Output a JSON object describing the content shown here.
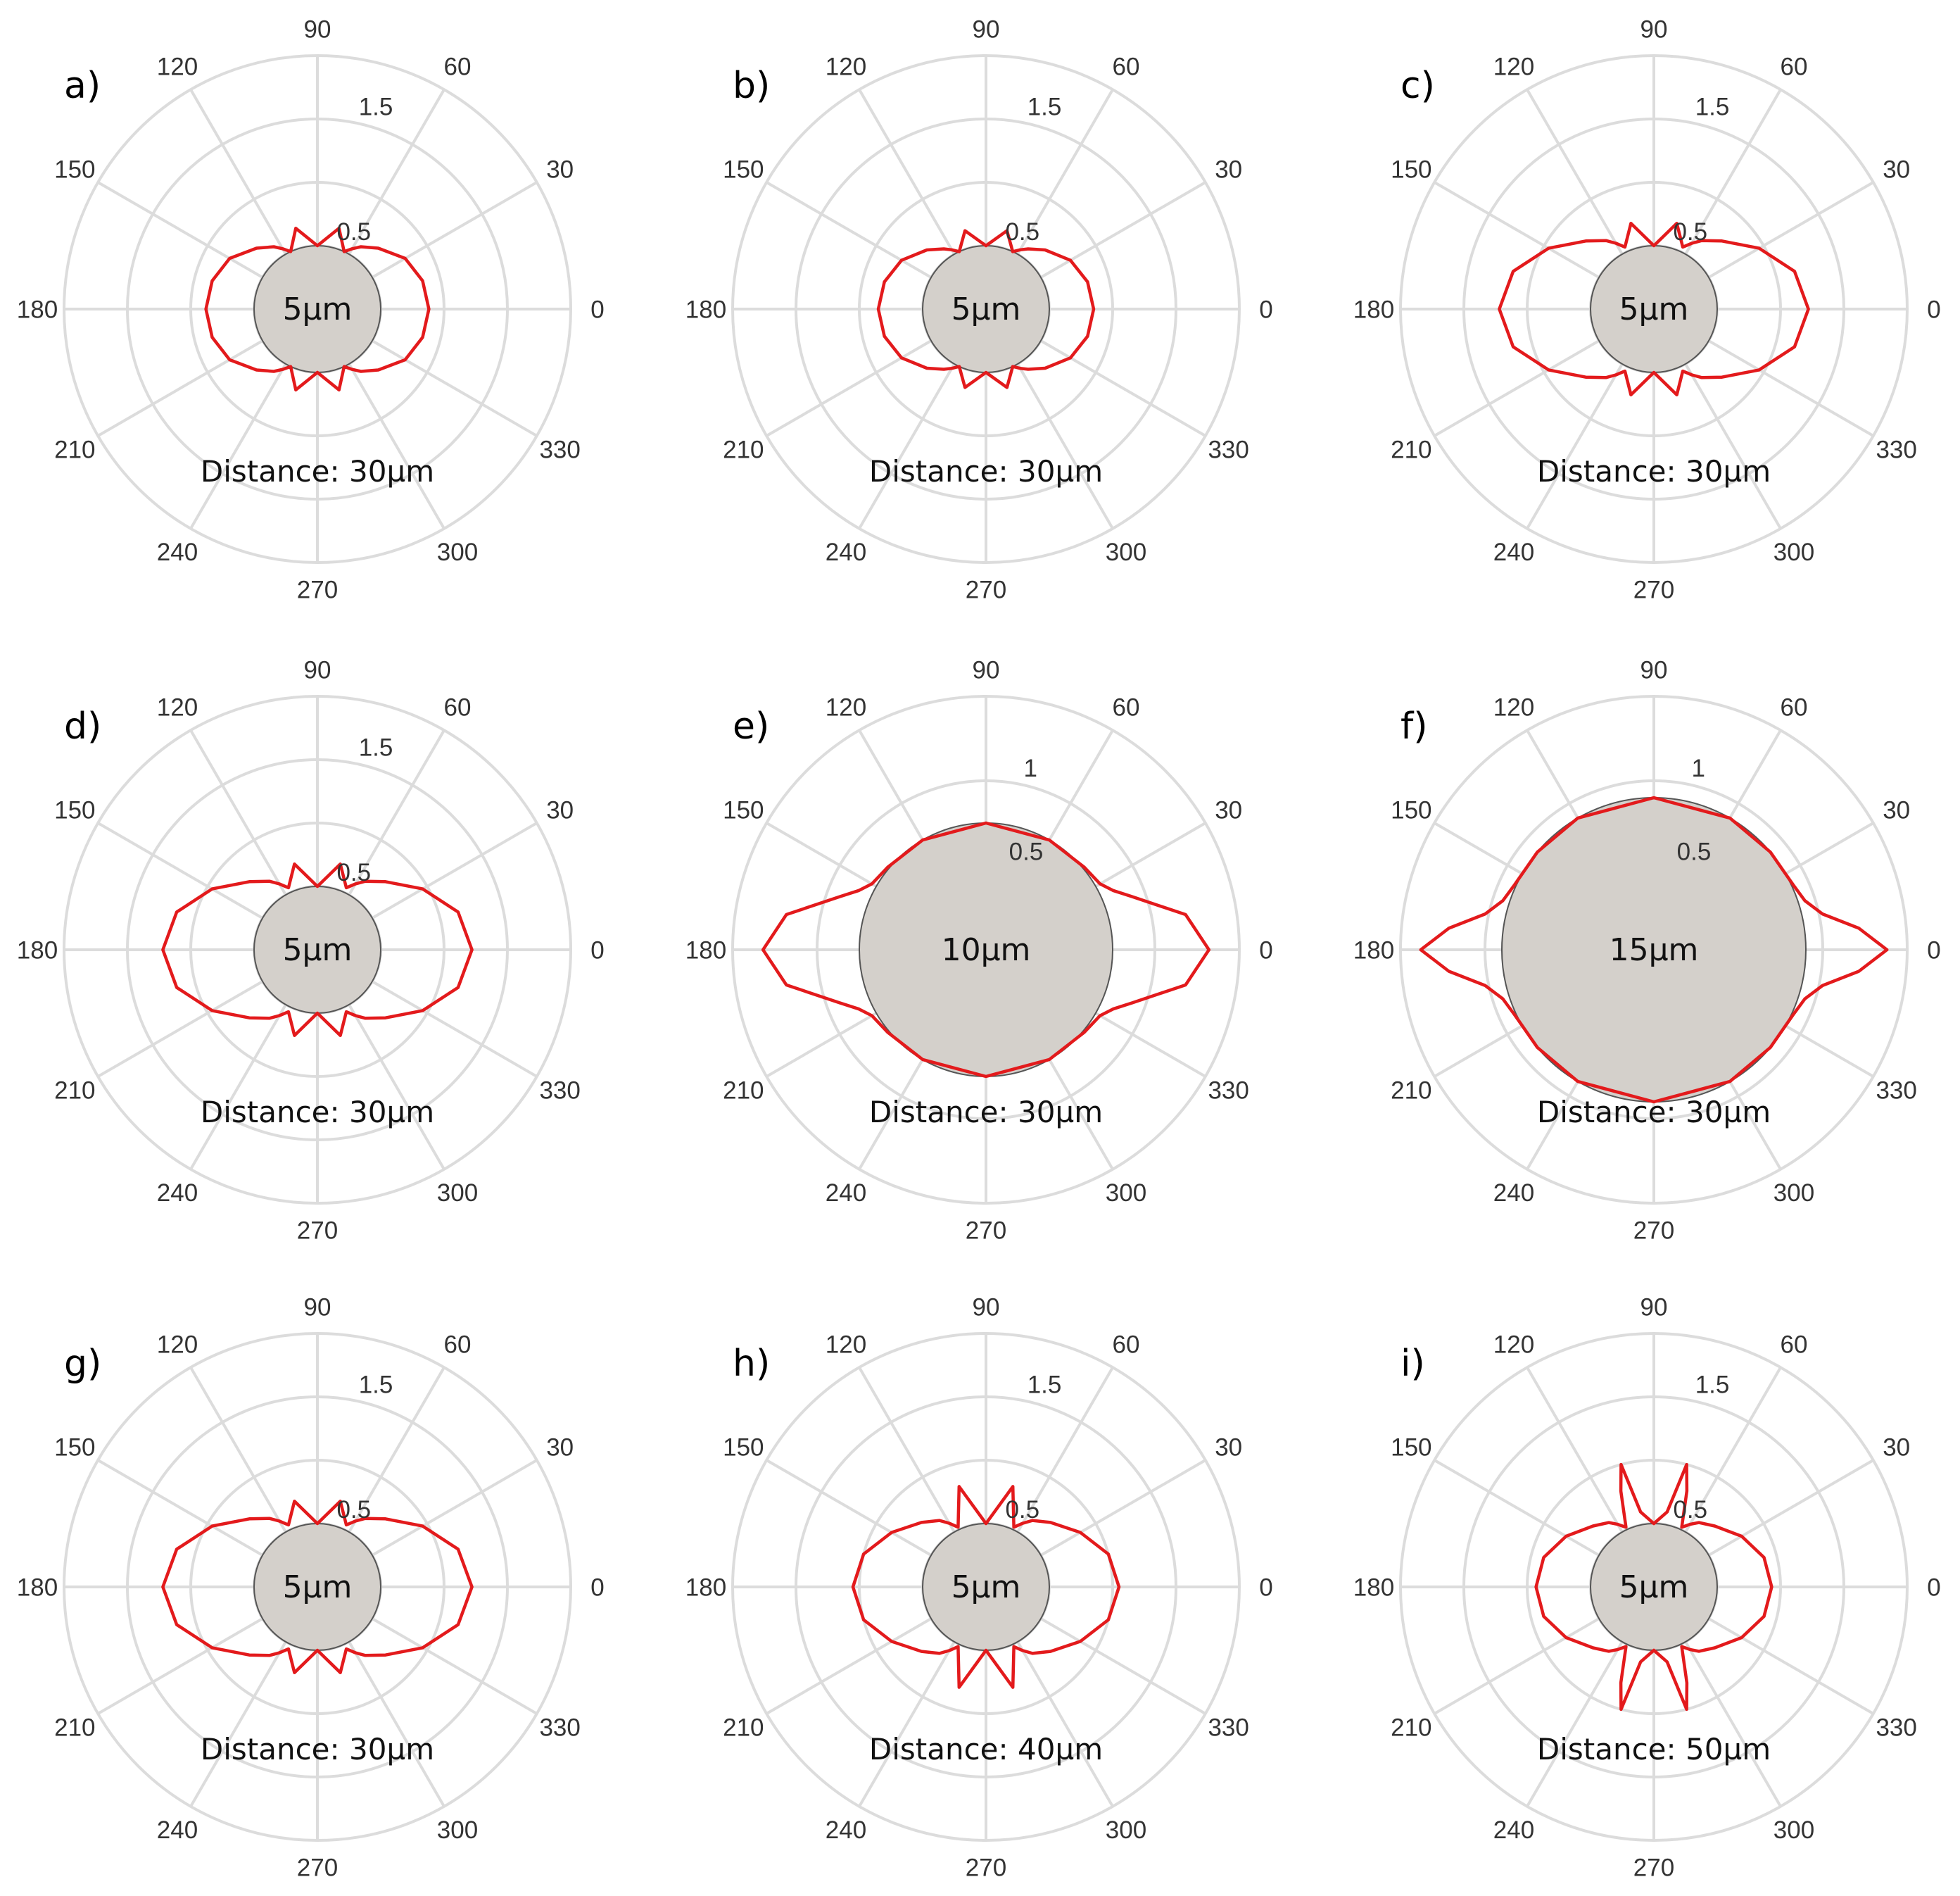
{
  "chart_data": [
    {
      "type": "polar",
      "panel_label": "a)",
      "angle_ticks": [
        "0",
        "30",
        "60",
        "90",
        "120",
        "150",
        "180",
        "210",
        "240",
        "270",
        "300",
        "330"
      ],
      "radial_ticks": [
        "0.5",
        "1.5"
      ],
      "rlim": [
        0,
        2
      ],
      "particle_label": "5µm",
      "particle_radius": 0.5,
      "distance_label": "Distance: 30µm",
      "series": [
        {
          "theta": [
            0,
            15,
            30,
            45,
            55,
            60,
            65,
            75,
            90,
            105,
            115,
            120,
            125,
            135,
            150,
            165,
            180,
            195,
            210,
            225,
            235,
            240,
            245,
            255,
            270,
            285,
            295,
            300,
            305,
            315,
            330,
            345,
            360
          ],
          "r": [
            0.88,
            0.86,
            0.8,
            0.68,
            0.6,
            0.55,
            0.5,
            0.66,
            0.5,
            0.66,
            0.5,
            0.55,
            0.6,
            0.68,
            0.8,
            0.86,
            0.88,
            0.86,
            0.8,
            0.68,
            0.6,
            0.55,
            0.5,
            0.66,
            0.5,
            0.66,
            0.5,
            0.55,
            0.6,
            0.68,
            0.8,
            0.86,
            0.88
          ]
        }
      ],
      "grid": true
    },
    {
      "type": "polar",
      "panel_label": "b)",
      "angle_ticks": [
        "0",
        "30",
        "60",
        "90",
        "120",
        "150",
        "180",
        "210",
        "240",
        "270",
        "300",
        "330"
      ],
      "radial_ticks": [
        "0.5",
        "1.5"
      ],
      "rlim": [
        0,
        2
      ],
      "particle_label": "5µm",
      "particle_radius": 0.5,
      "distance_label": "Distance: 30µm",
      "series": [
        {
          "theta": [
            0,
            15,
            30,
            45,
            55,
            60,
            65,
            75,
            90,
            105,
            115,
            120,
            125,
            135,
            150,
            165,
            180,
            195,
            210,
            225,
            235,
            240,
            245,
            255,
            270,
            285,
            295,
            300,
            305,
            315,
            330,
            345,
            360
          ],
          "r": [
            0.85,
            0.83,
            0.77,
            0.66,
            0.58,
            0.54,
            0.5,
            0.64,
            0.5,
            0.64,
            0.5,
            0.54,
            0.58,
            0.66,
            0.77,
            0.83,
            0.85,
            0.83,
            0.77,
            0.66,
            0.58,
            0.54,
            0.5,
            0.64,
            0.5,
            0.64,
            0.5,
            0.54,
            0.58,
            0.66,
            0.77,
            0.83,
            0.85
          ]
        }
      ],
      "grid": true
    },
    {
      "type": "polar",
      "panel_label": "c)",
      "angle_ticks": [
        "0",
        "30",
        "60",
        "90",
        "120",
        "150",
        "180",
        "210",
        "240",
        "270",
        "300",
        "330"
      ],
      "radial_ticks": [
        "0.5",
        "1.5"
      ],
      "rlim": [
        0,
        2
      ],
      "particle_label": "5µm",
      "particle_radius": 0.5,
      "distance_label": "Distance: 30µm",
      "series": [
        {
          "theta": [
            0,
            15,
            30,
            45,
            55,
            60,
            65,
            75,
            90,
            105,
            115,
            120,
            125,
            135,
            150,
            165,
            180,
            195,
            210,
            225,
            235,
            240,
            245,
            255,
            270,
            285,
            295,
            300,
            305,
            315,
            330,
            345,
            360
          ],
          "r": [
            1.22,
            1.15,
            0.96,
            0.76,
            0.66,
            0.6,
            0.54,
            0.7,
            0.5,
            0.7,
            0.54,
            0.6,
            0.66,
            0.76,
            0.96,
            1.15,
            1.22,
            1.15,
            0.96,
            0.76,
            0.66,
            0.6,
            0.54,
            0.7,
            0.5,
            0.7,
            0.54,
            0.6,
            0.66,
            0.76,
            0.96,
            1.15,
            1.22
          ]
        }
      ],
      "grid": true
    },
    {
      "type": "polar",
      "panel_label": "d)",
      "angle_ticks": [
        "0",
        "30",
        "60",
        "90",
        "120",
        "150",
        "180",
        "210",
        "240",
        "270",
        "300",
        "330"
      ],
      "radial_ticks": [
        "0.5",
        "1.5"
      ],
      "rlim": [
        0,
        2
      ],
      "particle_label": "5µm",
      "particle_radius": 0.5,
      "distance_label": "Distance: 30µm",
      "series": [
        {
          "theta": [
            0,
            15,
            30,
            45,
            55,
            60,
            65,
            75,
            90,
            105,
            115,
            120,
            125,
            135,
            150,
            165,
            180,
            195,
            210,
            225,
            235,
            240,
            245,
            255,
            270,
            285,
            295,
            300,
            305,
            315,
            330,
            345,
            360
          ],
          "r": [
            1.22,
            1.15,
            0.96,
            0.76,
            0.66,
            0.6,
            0.54,
            0.7,
            0.5,
            0.7,
            0.54,
            0.6,
            0.66,
            0.76,
            0.96,
            1.15,
            1.22,
            1.15,
            0.96,
            0.76,
            0.66,
            0.6,
            0.54,
            0.7,
            0.5,
            0.7,
            0.54,
            0.6,
            0.66,
            0.76,
            0.96,
            1.15,
            1.22
          ]
        }
      ],
      "grid": true
    },
    {
      "type": "polar",
      "panel_label": "e)",
      "angle_ticks": [
        "0",
        "30",
        "60",
        "90",
        "120",
        "150",
        "180",
        "210",
        "240",
        "270",
        "300",
        "330"
      ],
      "radial_ticks": [
        "0.5",
        "1"
      ],
      "rlim": [
        0,
        1.5
      ],
      "particle_label": "10µm",
      "particle_radius": 0.75,
      "distance_label": "Distance: 30µm",
      "series": [
        {
          "theta": [
            0,
            10,
            20,
            25,
            30,
            40,
            60,
            90,
            120,
            140,
            150,
            155,
            160,
            170,
            180,
            190,
            200,
            205,
            210,
            220,
            240,
            270,
            300,
            320,
            330,
            335,
            340,
            350,
            360
          ],
          "r": [
            1.32,
            1.2,
            0.92,
            0.83,
            0.78,
            0.76,
            0.75,
            0.75,
            0.75,
            0.76,
            0.78,
            0.83,
            0.92,
            1.2,
            1.32,
            1.2,
            0.92,
            0.83,
            0.78,
            0.76,
            0.75,
            0.75,
            0.75,
            0.76,
            0.78,
            0.83,
            0.92,
            1.2,
            1.32
          ]
        }
      ],
      "grid": true
    },
    {
      "type": "polar",
      "panel_label": "f)",
      "angle_ticks": [
        "0",
        "30",
        "60",
        "90",
        "120",
        "150",
        "180",
        "210",
        "240",
        "270",
        "300",
        "330"
      ],
      "radial_ticks": [
        "0.5",
        "1"
      ],
      "rlim": [
        0,
        1.5
      ],
      "particle_label": "15µm",
      "particle_radius": 0.9,
      "distance_label": "Distance: 30µm",
      "series": [
        {
          "theta": [
            0,
            6,
            12,
            18,
            25,
            40,
            60,
            90,
            120,
            140,
            155,
            162,
            168,
            174,
            180,
            186,
            192,
            198,
            205,
            220,
            240,
            270,
            300,
            320,
            335,
            342,
            348,
            354,
            360
          ],
          "r": [
            1.38,
            1.22,
            1.02,
            0.94,
            0.91,
            0.9,
            0.9,
            0.9,
            0.9,
            0.9,
            0.91,
            0.94,
            1.02,
            1.22,
            1.38,
            1.22,
            1.02,
            0.94,
            0.91,
            0.9,
            0.9,
            0.9,
            0.9,
            0.9,
            0.91,
            0.94,
            1.02,
            1.22,
            1.38
          ]
        }
      ],
      "grid": true
    },
    {
      "type": "polar",
      "panel_label": "g)",
      "angle_ticks": [
        "0",
        "30",
        "60",
        "90",
        "120",
        "150",
        "180",
        "210",
        "240",
        "270",
        "300",
        "330"
      ],
      "radial_ticks": [
        "0.5",
        "1.5"
      ],
      "rlim": [
        0,
        2
      ],
      "particle_label": "5µm",
      "particle_radius": 0.5,
      "distance_label": "Distance: 30µm",
      "series": [
        {
          "theta": [
            0,
            15,
            30,
            45,
            55,
            60,
            65,
            75,
            90,
            105,
            115,
            120,
            125,
            135,
            150,
            165,
            180,
            195,
            210,
            225,
            235,
            240,
            245,
            255,
            270,
            285,
            295,
            300,
            305,
            315,
            330,
            345,
            360
          ],
          "r": [
            1.22,
            1.15,
            0.96,
            0.76,
            0.66,
            0.6,
            0.54,
            0.7,
            0.5,
            0.7,
            0.54,
            0.6,
            0.66,
            0.76,
            0.96,
            1.15,
            1.22,
            1.15,
            0.96,
            0.76,
            0.66,
            0.6,
            0.54,
            0.7,
            0.5,
            0.7,
            0.54,
            0.6,
            0.66,
            0.76,
            0.96,
            1.15,
            1.22
          ]
        }
      ],
      "grid": true
    },
    {
      "type": "polar",
      "panel_label": "h)",
      "angle_ticks": [
        "0",
        "30",
        "60",
        "90",
        "120",
        "150",
        "180",
        "210",
        "240",
        "270",
        "300",
        "330"
      ],
      "radial_ticks": [
        "0.5",
        "1.5"
      ],
      "rlim": [
        0,
        2
      ],
      "particle_label": "5µm",
      "particle_radius": 0.5,
      "distance_label": "Distance: 40µm",
      "series": [
        {
          "theta": [
            0,
            15,
            30,
            45,
            55,
            60,
            65,
            75,
            90,
            105,
            115,
            120,
            125,
            135,
            150,
            165,
            180,
            195,
            210,
            225,
            235,
            240,
            245,
            255,
            270,
            285,
            295,
            300,
            305,
            315,
            330,
            345,
            360
          ],
          "r": [
            1.05,
            1.0,
            0.86,
            0.72,
            0.64,
            0.58,
            0.52,
            0.82,
            0.5,
            0.82,
            0.52,
            0.58,
            0.64,
            0.72,
            0.86,
            1.0,
            1.05,
            1.0,
            0.86,
            0.72,
            0.64,
            0.58,
            0.52,
            0.82,
            0.5,
            0.82,
            0.52,
            0.58,
            0.64,
            0.72,
            0.86,
            1.0,
            1.05
          ]
        }
      ],
      "grid": true
    },
    {
      "type": "polar",
      "panel_label": "i)",
      "angle_ticks": [
        "0",
        "30",
        "60",
        "90",
        "120",
        "150",
        "180",
        "210",
        "240",
        "270",
        "300",
        "330"
      ],
      "radial_ticks": [
        "0.5",
        "1.5"
      ],
      "rlim": [
        0,
        2
      ],
      "particle_label": "5µm",
      "particle_radius": 0.5,
      "distance_label": "Distance: 50µm",
      "series": [
        {
          "theta": [
            0,
            15,
            30,
            45,
            55,
            60,
            65,
            71,
            75,
            80,
            90,
            100,
            105,
            109,
            115,
            120,
            125,
            135,
            150,
            165,
            180,
            195,
            210,
            225,
            235,
            240,
            245,
            251,
            255,
            260,
            270,
            280,
            285,
            289,
            295,
            300,
            305,
            315,
            330,
            345,
            360
          ],
          "r": [
            0.93,
            0.9,
            0.8,
            0.68,
            0.62,
            0.57,
            0.52,
            0.8,
            1.0,
            0.6,
            0.5,
            0.6,
            1.0,
            0.8,
            0.52,
            0.57,
            0.62,
            0.68,
            0.8,
            0.9,
            0.93,
            0.9,
            0.8,
            0.68,
            0.62,
            0.57,
            0.52,
            0.8,
            1.0,
            0.6,
            0.5,
            0.6,
            1.0,
            0.8,
            0.52,
            0.57,
            0.62,
            0.68,
            0.8,
            0.9,
            0.93
          ]
        }
      ],
      "grid": true
    }
  ],
  "colors": {
    "curve": "#e31a1c",
    "particle_fill": "#d4d0cb",
    "particle_edge": "#555555",
    "grid": "#dcdcdc",
    "tick_text": "#333333"
  }
}
